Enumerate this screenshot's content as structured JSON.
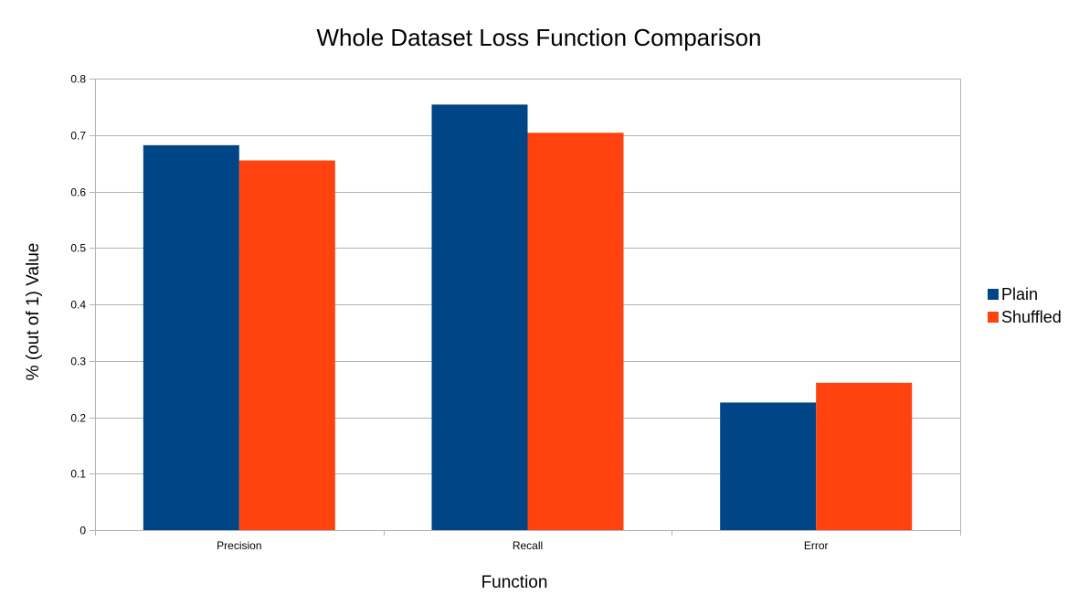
{
  "chart_data": {
    "type": "bar",
    "title": "Whole Dataset Loss Function Comparison",
    "xlabel": "Function",
    "ylabel": "% (out of 1) Value",
    "categories": [
      "Precision",
      "Recall",
      "Error"
    ],
    "series": [
      {
        "name": "Plain",
        "color": "#004586",
        "values": [
          0.682,
          0.754,
          0.226
        ]
      },
      {
        "name": "Shuffled",
        "color": "#ff420e",
        "values": [
          0.655,
          0.704,
          0.261
        ]
      }
    ],
    "ylim": [
      0,
      0.8
    ],
    "yticks": [
      "0",
      "0.1",
      "0.2",
      "0.3",
      "0.4",
      "0.5",
      "0.6",
      "0.7",
      "0.8"
    ],
    "grid": true,
    "legend_position": "right"
  }
}
